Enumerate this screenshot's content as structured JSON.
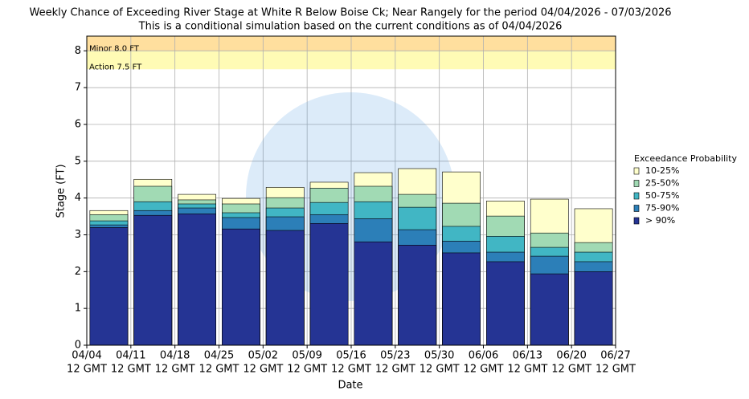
{
  "chart_data": {
    "type": "overlapping_bar",
    "title": "Weekly Chance of Exceeding River Stage at White R Below Boise Ck; Near Rangely for the period 04/04/2026 - 07/03/2026",
    "subtitle": "This is a conditional simulation based on the current conditions as of 04/04/2026",
    "x_label": "Date",
    "y_label": "Stage (FT)",
    "legend_title": "Exceedance Probability",
    "x_tick_labels": [
      [
        "04/04",
        "12 GMT"
      ],
      [
        "04/11",
        "12 GMT"
      ],
      [
        "04/18",
        "12 GMT"
      ],
      [
        "04/25",
        "12 GMT"
      ],
      [
        "05/02",
        "12 GMT"
      ],
      [
        "05/09",
        "12 GMT"
      ],
      [
        "05/16",
        "12 GMT"
      ],
      [
        "05/23",
        "12 GMT"
      ],
      [
        "05/30",
        "12 GMT"
      ],
      [
        "06/06",
        "12 GMT"
      ],
      [
        "06/13",
        "12 GMT"
      ],
      [
        "06/20",
        "12 GMT"
      ],
      [
        "06/27",
        "12 GMT"
      ]
    ],
    "ylim": [
      0,
      8.4
    ],
    "yticks": [
      0,
      1,
      2,
      3,
      4,
      5,
      6,
      7,
      8
    ],
    "grid": true,
    "thresholds": [
      {
        "label": "Minor 8.0 FT",
        "value": 8.0,
        "color": "#ffdf9e"
      },
      {
        "label": "Action 7.5 FT",
        "value": 7.5,
        "color": "#fffbb5"
      }
    ],
    "series": [
      {
        "name": "10-25%",
        "color": "#ffffcc",
        "values": [
          3.66,
          4.51,
          4.1,
          3.99,
          4.29,
          4.43,
          4.69,
          4.8,
          4.71,
          3.92,
          3.97,
          3.71
        ]
      },
      {
        "name": "25-50%",
        "color": "#a1dab4",
        "values": [
          3.55,
          4.32,
          3.95,
          3.84,
          4.01,
          4.27,
          4.32,
          4.1,
          3.86,
          3.51,
          3.05,
          2.79
        ]
      },
      {
        "name": "50-75%",
        "color": "#41b6c4",
        "values": [
          3.38,
          3.9,
          3.84,
          3.6,
          3.73,
          3.88,
          3.9,
          3.75,
          3.23,
          2.96,
          2.66,
          2.53
        ]
      },
      {
        "name": "75-90%",
        "color": "#2c7fb8",
        "values": [
          3.27,
          3.66,
          3.73,
          3.47,
          3.49,
          3.55,
          3.44,
          3.14,
          2.83,
          2.53,
          2.42,
          2.27
        ]
      },
      {
        "name": "> 90%",
        "color": "#253494",
        "values": [
          3.2,
          3.53,
          3.57,
          3.16,
          3.12,
          3.31,
          2.81,
          2.72,
          2.51,
          2.27,
          1.94,
          2.0
        ]
      }
    ]
  }
}
